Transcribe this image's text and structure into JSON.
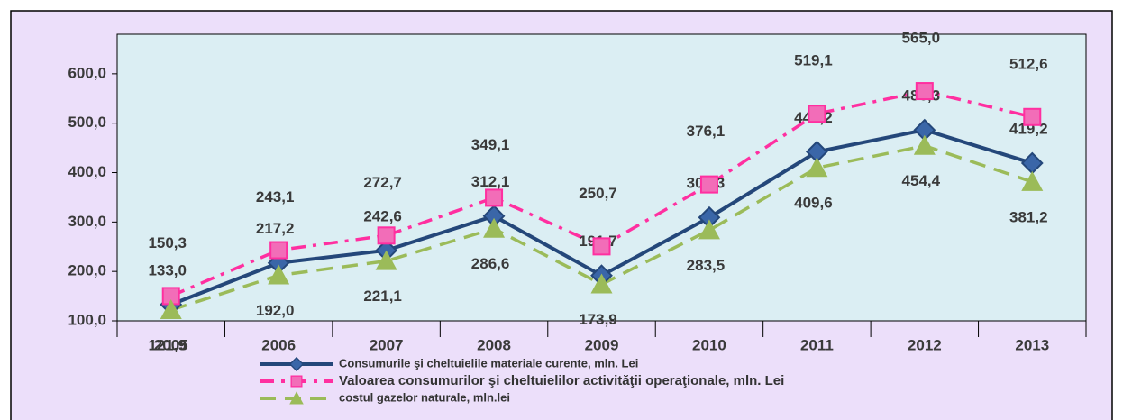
{
  "chart_data": {
    "type": "line",
    "categories": [
      "2005",
      "2006",
      "2007",
      "2008",
      "2009",
      "2010",
      "2011",
      "2012",
      "2013"
    ],
    "ylim": [
      100,
      680
    ],
    "yticks": [
      {
        "value": 100,
        "label": "100,0"
      },
      {
        "value": 200,
        "label": "200,0"
      },
      {
        "value": 300,
        "label": "300,0"
      },
      {
        "value": 400,
        "label": "400,0"
      },
      {
        "value": 500,
        "label": "500,0"
      },
      {
        "value": 600,
        "label": "600,0"
      }
    ],
    "grid": false,
    "legend": "bottom",
    "series": [
      {
        "name": "Consumurile şi cheltuielile materiale curente, mln. Lei",
        "color": "#24477a",
        "marker": "diamond",
        "dash": "solid",
        "values": [
          133.0,
          217.2,
          242.6,
          312.1,
          191.7,
          309.3,
          442.2,
          486.3,
          419.2
        ],
        "value_labels": [
          "133,0",
          "217,2",
          "242,6",
          "312,1",
          "191,7",
          "309,3",
          "442,2",
          "486,3",
          "419,2"
        ]
      },
      {
        "name": "Valoarea consumurilor şi cheltuielilor activităţii operaţionale, mln. Lei",
        "color": "#ff2fa0",
        "marker": "square",
        "dash": "dashdot",
        "values": [
          150.3,
          243.1,
          272.7,
          349.1,
          250.7,
          376.1,
          519.1,
          565.0,
          512.6
        ],
        "value_labels": [
          "150,3",
          "243,1",
          "272,7",
          "349,1",
          "250,7",
          "376,1",
          "519,1",
          "565,0",
          "512,6"
        ]
      },
      {
        "name": "costul gazelor naturale, mln.lei",
        "color": "#9bbb59",
        "marker": "triangle",
        "dash": "dashed",
        "values": [
          121.9,
          192.0,
          221.1,
          286.6,
          173.9,
          283.5,
          409.6,
          454.4,
          381.2
        ],
        "value_labels": [
          "121,9",
          "192,0",
          "221,1",
          "286,6",
          "173,9",
          "283,5",
          "409,6",
          "454,4",
          "381,2"
        ]
      }
    ]
  }
}
